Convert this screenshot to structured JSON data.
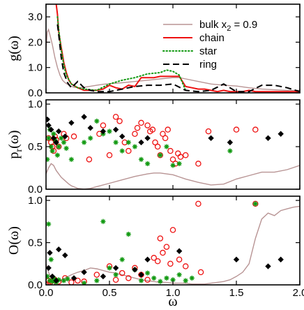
{
  "chart_data": {
    "type": "line",
    "xlabel": "ω",
    "xlim": [
      0.0,
      2.0
    ],
    "x_ticks": [
      "0.0",
      "0.5",
      "1.0",
      "1.5",
      "2.0"
    ],
    "x_tick_values": [
      0.0,
      0.5,
      1.0,
      1.5,
      2.0
    ],
    "legend_placement": "top-right",
    "colors": {
      "bulk": "#b89494",
      "chain": "#ee1111",
      "star": "#119911",
      "ring": "#000000"
    },
    "panels": [
      {
        "id": "g",
        "ylabel": "g(ω)",
        "ylim": [
          0,
          3.5
        ],
        "y_ticks": [
          "0.0",
          "1.0",
          "2.0",
          "3.0"
        ],
        "y_tick_values": [
          0,
          1,
          2,
          3
        ],
        "legend": [
          {
            "series": "bulk",
            "label": "bulk  x",
            "sub": "2",
            "suffix": " = 0.9",
            "style": "solid"
          },
          {
            "series": "chain",
            "label": "chain",
            "style": "solid"
          },
          {
            "series": "star",
            "label": "star",
            "style": "dotted"
          },
          {
            "series": "ring",
            "label": "ring",
            "style": "dashed"
          }
        ],
        "series": [
          {
            "name": "bulk",
            "style": "solid",
            "x": [
              0.0,
              0.01,
              0.02,
              0.03,
              0.05,
              0.07,
              0.09,
              0.11,
              0.13,
              0.15,
              0.18,
              0.22,
              0.26,
              0.3,
              0.35,
              0.4,
              0.45,
              0.5,
              0.6,
              0.7,
              0.8,
              0.9,
              1.0,
              1.05,
              1.1,
              1.2,
              1.3,
              1.4,
              1.5,
              1.6,
              1.7,
              1.8,
              1.9,
              2.0
            ],
            "y": [
              1.7,
              2.4,
              2.5,
              2.3,
              1.9,
              1.4,
              1.0,
              0.7,
              0.5,
              0.4,
              0.3,
              0.22,
              0.2,
              0.22,
              0.26,
              0.3,
              0.34,
              0.36,
              0.4,
              0.45,
              0.5,
              0.55,
              0.6,
              0.6,
              0.55,
              0.45,
              0.35,
              0.3,
              0.27,
              0.2,
              0.15,
              0.12,
              0.1,
              0.1
            ]
          },
          {
            "name": "chain",
            "style": "solid",
            "x": [
              0.08,
              0.09,
              0.1,
              0.12,
              0.14,
              0.16,
              0.18,
              0.2,
              0.25,
              0.3,
              0.35,
              0.4,
              0.45,
              0.5,
              0.55,
              0.6,
              0.65,
              0.7,
              0.75,
              0.8,
              0.85,
              0.9,
              0.95,
              1.0,
              1.05,
              1.1,
              1.15,
              1.2,
              1.25,
              1.3,
              1.35,
              1.4,
              1.45,
              1.5,
              1.55,
              1.6,
              1.65,
              1.7,
              1.75,
              1.8,
              1.85,
              1.9,
              1.95,
              2.0
            ],
            "y": [
              3.5,
              3.1,
              2.4,
              1.8,
              1.2,
              0.8,
              0.5,
              0.35,
              0.2,
              0.1,
              0.1,
              0.1,
              0.15,
              0.3,
              0.2,
              0.15,
              0.3,
              0.25,
              0.6,
              0.6,
              0.6,
              0.65,
              0.65,
              0.65,
              0.65,
              0.25,
              0.2,
              0.15,
              0.15,
              0.1,
              0.05,
              0.1,
              0.05,
              0.05,
              0.05,
              0.1,
              0.05,
              0.05,
              0.05,
              0.05,
              0.05,
              0.05,
              0.05,
              0.05
            ]
          },
          {
            "name": "star",
            "style": "dotted",
            "x": [
              0.09,
              0.1,
              0.12,
              0.14,
              0.16,
              0.2,
              0.25,
              0.3,
              0.4,
              0.5,
              0.6,
              0.7,
              0.8,
              0.9,
              0.95,
              1.0,
              1.05,
              1.1
            ],
            "y": [
              3.0,
              2.5,
              1.7,
              1.1,
              0.7,
              0.35,
              0.2,
              0.15,
              0.1,
              0.35,
              0.5,
              0.6,
              0.75,
              0.8,
              0.9,
              0.85,
              0.7,
              0.1
            ]
          },
          {
            "name": "ring",
            "style": "dashed",
            "x": [
              0.09,
              0.1,
              0.12,
              0.14,
              0.17,
              0.2,
              0.25,
              0.3,
              0.35,
              0.4,
              0.45,
              0.5,
              0.6,
              0.7,
              0.8,
              0.9,
              1.0,
              1.1,
              1.2,
              1.3,
              1.4,
              1.5,
              1.6,
              1.7,
              1.8,
              1.9,
              2.0
            ],
            "y": [
              2.7,
              2.3,
              1.4,
              0.8,
              0.4,
              0.2,
              0.45,
              0.2,
              0.1,
              0.05,
              0.05,
              0.05,
              0.15,
              0.25,
              0.3,
              0.3,
              0.35,
              0.1,
              0.05,
              0.1,
              0.35,
              0.05,
              0.05,
              0.3,
              0.3,
              0.2,
              0.05
            ]
          }
        ]
      },
      {
        "id": "pr",
        "ylabel": "p",
        "ylabel_sub": "r",
        "ylabel_suffix": "(ω)",
        "ylim": [
          0,
          1.05
        ],
        "y_ticks": [
          "0.0",
          "0.5",
          "1.0"
        ],
        "y_tick_values": [
          0,
          0.5,
          1.0
        ],
        "series": [
          {
            "name": "bulk",
            "style": "solid",
            "x": [
              0.0,
              0.02,
              0.04,
              0.06,
              0.08,
              0.1,
              0.12,
              0.15,
              0.18,
              0.2,
              0.25,
              0.3,
              0.35,
              0.4,
              0.5,
              0.6,
              0.7,
              0.8,
              0.85,
              0.9,
              1.0,
              1.1,
              1.2,
              1.3,
              1.4,
              1.5,
              1.6,
              1.7,
              1.8,
              1.9,
              2.0
            ],
            "y": [
              0.18,
              0.25,
              0.3,
              0.28,
              0.22,
              0.18,
              0.14,
              0.1,
              0.06,
              0.04,
              0.01,
              0.0,
              0.01,
              0.03,
              0.07,
              0.11,
              0.15,
              0.18,
              0.19,
              0.19,
              0.17,
              0.12,
              0.08,
              0.05,
              0.06,
              0.12,
              0.16,
              0.2,
              0.2,
              0.23,
              0.28
            ]
          }
        ],
        "scatter": [
          {
            "name": "chain",
            "marker": "circle-open",
            "x": [
              0.02,
              0.04,
              0.05,
              0.06,
              0.07,
              0.08,
              0.1,
              0.14,
              0.16,
              0.22,
              0.34,
              0.42,
              0.45,
              0.5,
              0.55,
              0.58,
              0.62,
              0.65,
              0.7,
              0.72,
              0.75,
              0.8,
              0.82,
              0.84,
              0.86,
              0.88,
              0.9,
              0.92,
              0.94,
              0.96,
              0.98,
              1.0,
              1.02,
              1.04,
              1.06,
              1.1,
              1.2,
              1.28,
              1.5,
              1.65
            ],
            "y": [
              0.6,
              0.55,
              0.5,
              0.45,
              0.62,
              0.58,
              0.5,
              0.65,
              0.6,
              0.62,
              0.35,
              0.65,
              0.75,
              0.4,
              0.85,
              0.8,
              0.55,
              0.45,
              0.65,
              0.72,
              0.78,
              0.75,
              0.68,
              0.7,
              0.55,
              0.5,
              0.4,
              0.65,
              0.6,
              0.7,
              0.45,
              0.35,
              0.3,
              0.42,
              0.38,
              0.4,
              0.3,
              0.68,
              0.7,
              0.7
            ]
          },
          {
            "name": "star",
            "marker": "asterisk",
            "x": [
              0.01,
              0.02,
              0.03,
              0.04,
              0.05,
              0.06,
              0.07,
              0.08,
              0.09,
              0.1,
              0.12,
              0.14,
              0.16,
              0.2,
              0.3,
              0.35,
              0.4,
              0.45,
              0.5,
              0.55,
              0.6,
              0.65,
              0.7,
              0.75,
              0.8,
              0.9,
              0.95,
              1.0,
              1.05,
              1.45
            ],
            "y": [
              0.35,
              0.6,
              0.7,
              0.5,
              0.45,
              0.65,
              0.58,
              0.55,
              0.4,
              0.5,
              0.6,
              0.55,
              0.48,
              0.35,
              0.55,
              0.6,
              0.8,
              0.65,
              0.68,
              0.55,
              0.45,
              0.55,
              0.5,
              0.35,
              0.3,
              0.4,
              0.5,
              0.28,
              0.3,
              0.45
            ]
          },
          {
            "name": "ring",
            "marker": "diamond",
            "x": [
              0.01,
              0.02,
              0.04,
              0.06,
              0.08,
              0.1,
              0.15,
              0.2,
              0.3,
              0.35,
              0.45,
              0.55,
              0.6,
              0.75,
              0.8,
              1.3,
              1.45,
              1.75,
              1.85
            ],
            "y": [
              0.82,
              0.75,
              0.7,
              0.6,
              0.55,
              0.68,
              0.62,
              0.78,
              0.85,
              0.72,
              0.68,
              0.7,
              0.62,
              0.55,
              0.6,
              0.6,
              0.55,
              0.6,
              0.65
            ]
          }
        ]
      },
      {
        "id": "O",
        "ylabel": "O(ω)",
        "ylim": [
          0,
          1.05
        ],
        "y_ticks": [
          "0.0",
          "0.5",
          "1.0"
        ],
        "y_tick_values": [
          0,
          0.5,
          1.0
        ],
        "series": [
          {
            "name": "bulk",
            "style": "solid",
            "x": [
              0.0,
              0.02,
              0.04,
              0.06,
              0.08,
              0.1,
              0.12,
              0.15,
              0.2,
              0.25,
              0.3,
              0.35,
              0.4,
              0.45,
              0.5,
              0.55,
              0.6,
              0.65,
              0.7,
              0.75,
              0.8,
              0.85,
              0.9,
              0.95,
              1.0,
              1.05,
              1.1,
              1.15,
              1.2,
              1.25,
              1.3,
              1.35,
              1.4,
              1.45,
              1.5,
              1.55,
              1.6,
              1.65,
              1.7,
              1.75,
              1.8,
              1.85,
              1.9,
              1.95,
              2.0
            ],
            "y": [
              0.25,
              0.15,
              0.08,
              0.04,
              0.02,
              0.04,
              0.06,
              0.08,
              0.12,
              0.15,
              0.17,
              0.2,
              0.19,
              0.17,
              0.15,
              0.14,
              0.12,
              0.1,
              0.08,
              0.06,
              0.05,
              0.04,
              0.03,
              0.03,
              0.02,
              0.02,
              0.02,
              0.01,
              0.01,
              0.01,
              0.02,
              0.03,
              0.04,
              0.06,
              0.1,
              0.15,
              0.25,
              0.55,
              0.78,
              0.85,
              0.82,
              0.88,
              0.9,
              0.92,
              0.93
            ]
          }
        ],
        "scatter": [
          {
            "name": "chain",
            "marker": "circle-open",
            "x": [
              0.02,
              0.03,
              0.04,
              0.05,
              0.07,
              0.1,
              0.15,
              0.2,
              0.25,
              0.3,
              0.4,
              0.5,
              0.55,
              0.6,
              0.65,
              0.7,
              0.75,
              0.8,
              0.85,
              0.88,
              0.9,
              0.92,
              0.95,
              0.98,
              1.0,
              1.05,
              1.1,
              1.2,
              1.22,
              1.65
            ],
            "y": [
              0.05,
              0.03,
              0.04,
              0.02,
              0.06,
              0.04,
              0.08,
              0.03,
              0.05,
              0.04,
              0.12,
              0.22,
              0.06,
              0.14,
              0.08,
              0.2,
              0.12,
              0.06,
              0.32,
              0.28,
              0.55,
              0.38,
              0.45,
              0.25,
              0.65,
              0.3,
              0.22,
              0.96,
              0.15,
              0.96
            ]
          },
          {
            "name": "star",
            "marker": "asterisk",
            "x": [
              0.01,
              0.02,
              0.03,
              0.04,
              0.05,
              0.06,
              0.08,
              0.1,
              0.14,
              0.17,
              0.3,
              0.4,
              0.45,
              0.5,
              0.55,
              0.6,
              0.65,
              0.7,
              0.75,
              0.8,
              0.85,
              0.9,
              0.95,
              1.0,
              1.05,
              1.1,
              1.15,
              1.65
            ],
            "y": [
              0.1,
              0.72,
              0.05,
              0.3,
              0.04,
              0.08,
              0.03,
              0.06,
              0.05,
              0.07,
              0.02,
              0.05,
              0.75,
              0.2,
              0.12,
              0.3,
              0.6,
              0.18,
              0.05,
              0.14,
              0.08,
              0.04,
              0.08,
              0.06,
              0.12,
              0.05,
              0.08,
              0.96
            ]
          },
          {
            "name": "ring",
            "marker": "diamond",
            "x": [
              0.02,
              0.03,
              0.05,
              0.08,
              0.1,
              0.15,
              0.22,
              0.3,
              0.45,
              0.55,
              0.7,
              0.75,
              0.8,
              1.05,
              1.5,
              1.75,
              1.85
            ],
            "y": [
              0.2,
              0.38,
              0.1,
              0.05,
              0.42,
              0.35,
              0.08,
              0.15,
              0.1,
              0.2,
              0.18,
              0.12,
              0.3,
              0.4,
              0.3,
              0.22,
              0.3
            ]
          }
        ]
      }
    ]
  }
}
